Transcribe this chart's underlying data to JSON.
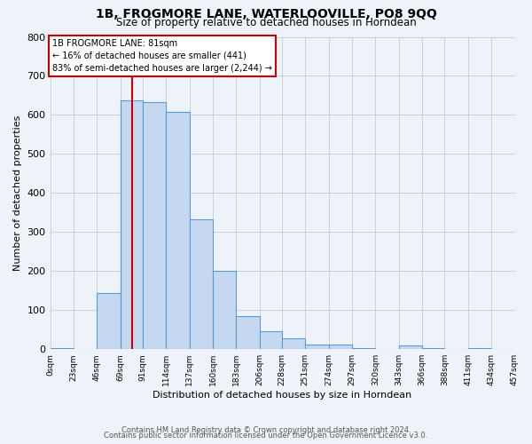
{
  "title": "1B, FROGMORE LANE, WATERLOOVILLE, PO8 9QQ",
  "subtitle": "Size of property relative to detached houses in Horndean",
  "xlabel": "Distribution of detached houses by size in Horndean",
  "ylabel": "Number of detached properties",
  "footer_lines": [
    "Contains HM Land Registry data © Crown copyright and database right 2024.",
    "Contains public sector information licensed under the Open Government Licence v3.0."
  ],
  "bin_edges": [
    0,
    23,
    46,
    69,
    91,
    114,
    137,
    160,
    183,
    206,
    228,
    251,
    274,
    297,
    320,
    343,
    366,
    388,
    411,
    434,
    457
  ],
  "bin_labels": [
    "0sqm",
    "23sqm",
    "46sqm",
    "69sqm",
    "91sqm",
    "114sqm",
    "137sqm",
    "160sqm",
    "183sqm",
    "206sqm",
    "228sqm",
    "251sqm",
    "274sqm",
    "297sqm",
    "320sqm",
    "343sqm",
    "366sqm",
    "388sqm",
    "411sqm",
    "434sqm",
    "457sqm"
  ],
  "bar_heights": [
    3,
    0,
    143,
    637,
    632,
    607,
    333,
    200,
    84,
    46,
    27,
    12,
    12,
    3,
    0,
    9,
    3,
    0,
    3,
    0
  ],
  "bar_color": "#c5d8f0",
  "bar_edge_color": "#5b9bd5",
  "property_label": "1B FROGMORE LANE: 81sqm",
  "annotation_line1": "← 16% of detached houses are smaller (441)",
  "annotation_line2": "83% of semi-detached houses are larger (2,244) →",
  "vline_color": "#cc0000",
  "vline_x": 81,
  "box_color": "#cc0000",
  "ylim": [
    0,
    800
  ],
  "yticks": [
    0,
    100,
    200,
    300,
    400,
    500,
    600,
    700,
    800
  ],
  "background_color": "#eef2f9",
  "axes_background": "#eef2f9",
  "grid_color": "#c8d0de"
}
